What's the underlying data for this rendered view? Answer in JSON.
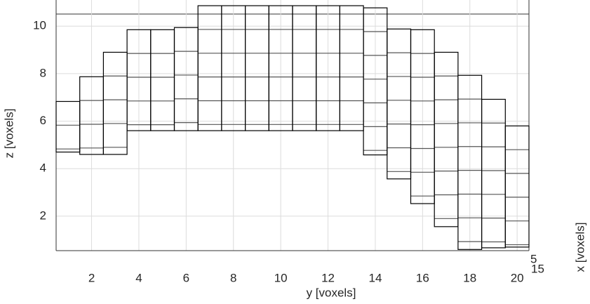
{
  "chart_data": {
    "type": "voxel",
    "x_label": "y [voxels]",
    "y_label": "z [voxels]",
    "depth_label": "x [voxels]",
    "depth_ticks": [
      5,
      15
    ],
    "x": [
      1,
      2,
      3,
      4,
      5,
      6,
      7,
      8,
      9,
      10,
      11,
      12,
      13,
      14,
      15,
      16,
      17,
      18,
      19,
      20
    ],
    "lower": [
      4.7,
      4.6,
      4.6,
      5.6,
      5.6,
      5.6,
      5.6,
      5.6,
      5.6,
      5.6,
      5.6,
      5.6,
      5.6,
      4.58,
      3.57,
      2.53,
      1.56,
      0.6,
      0.67,
      0.7
    ],
    "upper": [
      6.83,
      7.87,
      8.9,
      9.85,
      9.85,
      9.94,
      10.86,
      10.86,
      10.86,
      10.86,
      10.86,
      10.86,
      10.86,
      10.77,
      9.88,
      9.85,
      8.9,
      7.93,
      6.92,
      5.8
    ],
    "color": "#000000",
    "xlim": [
      0.5,
      20.5
    ],
    "ylim": [
      0.55,
      11.1
    ],
    "xticks": [
      2,
      4,
      6,
      8,
      10,
      12,
      14,
      16,
      18,
      20
    ],
    "yticks": [
      2,
      4,
      6,
      8,
      10
    ],
    "grid": true
  }
}
